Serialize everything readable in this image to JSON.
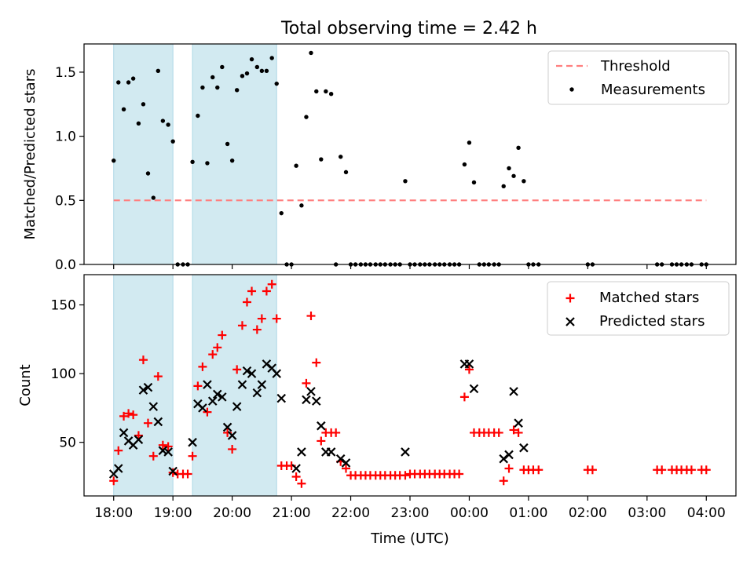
{
  "title": "Total observing time = 2.42 h",
  "colors": {
    "threshold": "#ff7f7f",
    "shade": "#add8e6",
    "matched": "#ff0000",
    "predicted": "#000000",
    "measurement": "#000000"
  },
  "chart_data": [
    {
      "type": "scatter",
      "ylabel": "Matched/Predicted stars",
      "xlim": [
        17.5,
        28.5
      ],
      "ylim": [
        0,
        1.72
      ],
      "yticks": [
        0.0,
        0.5,
        1.0,
        1.5
      ],
      "ytick_labels": [
        "0.0",
        "0.5",
        "1.0",
        "1.5"
      ],
      "shaded_intervals": [
        [
          18.0,
          19.0
        ],
        [
          19.33,
          20.75
        ]
      ],
      "threshold": {
        "value": 0.5,
        "x_range": [
          18.0,
          28.0
        ]
      },
      "legend": {
        "position": "upper right",
        "entries": [
          "Threshold",
          "Measurements"
        ]
      },
      "series": [
        {
          "name": "Measurements",
          "x": [
            18.0,
            18.08,
            18.17,
            18.25,
            18.33,
            18.42,
            18.5,
            18.58,
            18.67,
            18.75,
            18.83,
            18.92,
            19.0,
            19.08,
            19.17,
            19.25,
            19.33,
            19.42,
            19.5,
            19.58,
            19.67,
            19.75,
            19.83,
            19.92,
            20.0,
            20.08,
            20.17,
            20.25,
            20.33,
            20.42,
            20.5,
            20.58,
            20.67,
            20.75,
            20.83,
            20.92,
            21.0,
            21.08,
            21.17,
            21.25,
            21.33,
            21.42,
            21.5,
            21.58,
            21.67,
            21.75,
            21.83,
            21.92,
            22.0,
            22.08,
            22.17,
            22.25,
            22.33,
            22.42,
            22.5,
            22.58,
            22.67,
            22.75,
            22.83,
            22.92,
            23.0,
            23.08,
            23.17,
            23.25,
            23.33,
            23.42,
            23.5,
            23.58,
            23.67,
            23.75,
            23.83,
            23.92,
            24.0,
            24.08,
            24.17,
            24.25,
            24.33,
            24.42,
            24.5,
            24.58,
            24.67,
            24.75,
            24.83,
            24.92,
            25.0,
            25.08,
            25.17,
            26.0,
            26.08,
            27.17,
            27.25,
            27.42,
            27.5,
            27.58,
            27.67,
            27.75,
            27.92,
            28.0
          ],
          "y": [
            0.81,
            1.42,
            1.21,
            1.42,
            1.45,
            1.1,
            1.25,
            0.71,
            0.52,
            1.51,
            1.12,
            1.09,
            0.96,
            0.0,
            0.0,
            0.0,
            0.8,
            1.16,
            1.38,
            0.79,
            1.46,
            1.38,
            1.54,
            0.94,
            0.81,
            1.36,
            1.47,
            1.49,
            1.6,
            1.54,
            1.51,
            1.51,
            1.61,
            1.41,
            0.4,
            0.0,
            0.0,
            0.77,
            0.46,
            1.15,
            1.65,
            1.35,
            0.82,
            1.35,
            1.33,
            0.0,
            0.84,
            0.72,
            0.0,
            0.0,
            0.0,
            0.0,
            0.0,
            0.0,
            0.0,
            0.0,
            0.0,
            0.0,
            0.0,
            0.65,
            0.0,
            0.0,
            0.0,
            0.0,
            0.0,
            0.0,
            0.0,
            0.0,
            0.0,
            0.0,
            0.0,
            0.78,
            0.95,
            0.64,
            0.0,
            0.0,
            0.0,
            0.0,
            0.0,
            0.61,
            0.75,
            0.69,
            0.91,
            0.65,
            0.0,
            0.0,
            0.0,
            0.0,
            0.0,
            0.0,
            0.0,
            0.0,
            0.0,
            0.0,
            0.0,
            0.0,
            0.0,
            0.0
          ]
        }
      ]
    },
    {
      "type": "scatter",
      "ylabel": "Count",
      "xlabel": "Time (UTC)",
      "xlim": [
        17.5,
        28.5
      ],
      "ylim": [
        11,
        172
      ],
      "yticks": [
        50,
        100,
        150
      ],
      "xticks": [
        18,
        19,
        20,
        21,
        22,
        23,
        24,
        25,
        26,
        27,
        28
      ],
      "xtick_labels": [
        "18:00",
        "19:00",
        "20:00",
        "21:00",
        "22:00",
        "23:00",
        "00:00",
        "01:00",
        "02:00",
        "03:00",
        "04:00"
      ],
      "shaded_intervals": [
        [
          18.0,
          19.0
        ],
        [
          19.33,
          20.75
        ]
      ],
      "legend": {
        "position": "upper right",
        "entries": [
          "Matched stars",
          "Predicted stars"
        ]
      },
      "series": [
        {
          "name": "Matched stars",
          "x": [
            18.0,
            18.08,
            18.17,
            18.25,
            18.33,
            18.42,
            18.5,
            18.58,
            18.67,
            18.75,
            18.83,
            18.92,
            19.0,
            19.08,
            19.17,
            19.25,
            19.33,
            19.42,
            19.5,
            19.58,
            19.67,
            19.75,
            19.83,
            19.92,
            20.0,
            20.08,
            20.17,
            20.25,
            20.33,
            20.42,
            20.5,
            20.58,
            20.67,
            20.75,
            20.83,
            20.92,
            21.0,
            21.08,
            21.17,
            21.25,
            21.33,
            21.42,
            21.5,
            21.58,
            21.67,
            21.75,
            21.83,
            21.92,
            22.0,
            22.08,
            22.17,
            22.25,
            22.33,
            22.42,
            22.5,
            22.58,
            22.67,
            22.75,
            22.83,
            22.92,
            23.0,
            23.08,
            23.17,
            23.25,
            23.33,
            23.42,
            23.5,
            23.58,
            23.67,
            23.75,
            23.83,
            23.92,
            24.0,
            24.08,
            24.17,
            24.25,
            24.33,
            24.42,
            24.5,
            24.58,
            24.67,
            24.75,
            24.83,
            24.92,
            25.0,
            25.08,
            25.17,
            26.0,
            26.08,
            27.17,
            27.25,
            27.42,
            27.5,
            27.58,
            27.67,
            27.75,
            27.92,
            28.0
          ],
          "y": [
            22,
            44,
            69,
            71,
            70,
            55,
            110,
            64,
            40,
            98,
            48,
            47,
            28,
            27,
            27,
            27,
            40,
            91,
            105,
            72,
            114,
            119,
            128,
            57,
            45,
            103,
            135,
            152,
            160,
            132,
            140,
            160,
            165,
            140,
            33,
            33,
            33,
            25,
            20,
            93,
            142,
            108,
            51,
            57,
            57,
            57,
            36,
            31,
            26,
            26,
            26,
            26,
            26,
            26,
            26,
            26,
            26,
            26,
            26,
            26,
            27,
            27,
            27,
            27,
            27,
            27,
            27,
            27,
            27,
            27,
            27,
            83,
            103,
            57,
            57,
            57,
            57,
            57,
            57,
            22,
            31,
            59,
            57,
            30,
            30,
            30,
            30,
            30,
            30,
            30,
            30,
            30,
            30,
            30,
            30,
            30,
            30,
            30
          ]
        },
        {
          "name": "Predicted stars",
          "x": [
            18.0,
            18.08,
            18.17,
            18.25,
            18.33,
            18.42,
            18.5,
            18.58,
            18.67,
            18.75,
            18.83,
            18.92,
            19.0,
            19.33,
            19.42,
            19.5,
            19.58,
            19.67,
            19.75,
            19.83,
            19.92,
            20.0,
            20.08,
            20.17,
            20.25,
            20.33,
            20.42,
            20.5,
            20.58,
            20.67,
            20.75,
            20.83,
            21.08,
            21.17,
            21.25,
            21.33,
            21.42,
            21.5,
            21.58,
            21.67,
            21.83,
            21.92,
            22.92,
            23.92,
            24.0,
            24.08,
            24.58,
            24.67,
            24.75,
            24.83,
            24.92
          ],
          "y": [
            27,
            31,
            57,
            51,
            48,
            52,
            88,
            90,
            76,
            65,
            44,
            43,
            29,
            50,
            78,
            75,
            92,
            80,
            85,
            83,
            61,
            55,
            76,
            92,
            102,
            100,
            86,
            92,
            107,
            104,
            100,
            82,
            31,
            43,
            81,
            87,
            80,
            62,
            43,
            43,
            38,
            35,
            43,
            107,
            107,
            89,
            38,
            41,
            87,
            64,
            46
          ]
        }
      ]
    }
  ]
}
